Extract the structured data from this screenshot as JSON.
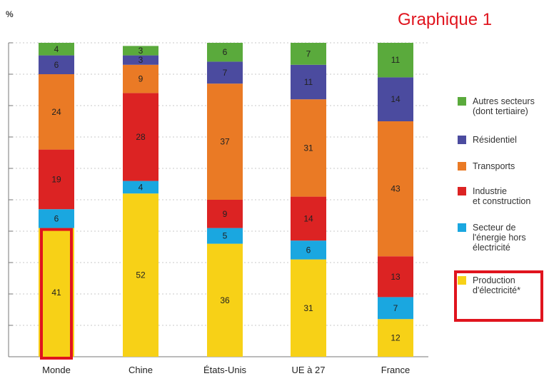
{
  "chart_data": {
    "type": "bar",
    "stacked": true,
    "title": "Graphique 1",
    "ylabel": "%",
    "ylim": [
      0,
      100
    ],
    "grid": true,
    "legend_position": "right",
    "categories": [
      "Monde",
      "Chine",
      "États-Unis",
      "UE à 27",
      "France"
    ],
    "series": [
      {
        "name": "Production d'électricité*",
        "color": "#f7d117",
        "values": [
          41,
          52,
          36,
          31,
          12
        ]
      },
      {
        "name": "Secteur de l'énergie hors électricité",
        "color": "#1aa7e0",
        "values": [
          6,
          4,
          5,
          6,
          7
        ]
      },
      {
        "name": "Industrie et construction",
        "color": "#dc2323",
        "values": [
          19,
          28,
          9,
          14,
          13
        ]
      },
      {
        "name": "Transports",
        "color": "#ea7a25",
        "values": [
          24,
          9,
          37,
          31,
          43
        ]
      },
      {
        "name": "Résidentiel",
        "color": "#4b4b9f",
        "values": [
          6,
          3,
          7,
          11,
          14
        ]
      },
      {
        "name": "Autres secteurs (dont tertiaire)",
        "color": "#5aaa3c",
        "values": [
          4,
          3,
          6,
          7,
          11
        ]
      }
    ],
    "highlight": {
      "category": "Monde",
      "series": "Production d'électricité*",
      "color": "#e0141e"
    }
  }
}
